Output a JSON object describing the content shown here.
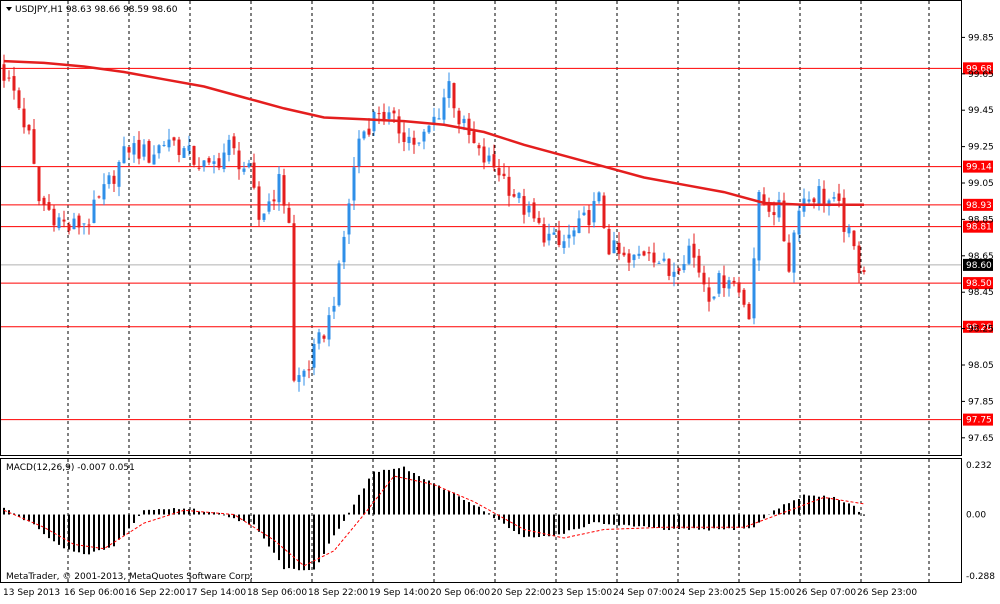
{
  "chart_data": [
    {
      "panel": "price",
      "type": "candlestick",
      "title": "USDJPY,H1  98.63 98.66 98.59 98.60",
      "ylim": [
        97.55,
        100.05
      ],
      "yticks": [
        "99.85",
        "99.65",
        "99.45",
        "99.25",
        "99.05",
        "98.85",
        "98.65",
        "98.45",
        "98.25",
        "98.05",
        "97.85",
        "97.65"
      ],
      "current_price": "98.60",
      "horizontal_levels": [
        "99.68",
        "99.14",
        "98.93",
        "98.81",
        "98.50",
        "98.26",
        "97.75"
      ],
      "moving_average": {
        "color": "#e41e1e",
        "points": [
          [
            0,
            99.72
          ],
          [
            8,
            99.71
          ],
          [
            16,
            99.69
          ],
          [
            24,
            99.66
          ],
          [
            32,
            99.62
          ],
          [
            40,
            99.58
          ],
          [
            48,
            99.52
          ],
          [
            56,
            99.46
          ],
          [
            64,
            99.41
          ],
          [
            72,
            99.4
          ],
          [
            80,
            99.39
          ],
          [
            88,
            99.37
          ],
          [
            96,
            99.33
          ],
          [
            104,
            99.26
          ],
          [
            112,
            99.2
          ],
          [
            120,
            99.14
          ],
          [
            128,
            99.08
          ],
          [
            136,
            99.04
          ],
          [
            144,
            99.0
          ],
          [
            152,
            98.94
          ],
          [
            160,
            98.93
          ],
          [
            168,
            98.93
          ],
          [
            172,
            98.93
          ]
        ]
      },
      "price_path": [
        [
          0,
          99.7
        ],
        [
          3,
          99.55
        ],
        [
          6,
          99.3
        ],
        [
          8,
          98.95
        ],
        [
          10,
          98.9
        ],
        [
          14,
          98.8
        ],
        [
          18,
          98.85
        ],
        [
          22,
          99.05
        ],
        [
          26,
          99.25
        ],
        [
          30,
          99.2
        ],
        [
          34,
          99.3
        ],
        [
          38,
          99.2
        ],
        [
          42,
          99.12
        ],
        [
          46,
          99.25
        ],
        [
          50,
          99.1
        ],
        [
          52,
          98.85
        ],
        [
          54,
          98.95
        ],
        [
          56,
          99.05
        ],
        [
          58,
          98.85
        ],
        [
          59,
          97.95
        ],
        [
          62,
          98.05
        ],
        [
          66,
          98.3
        ],
        [
          68,
          98.55
        ],
        [
          70,
          98.95
        ],
        [
          72,
          99.3
        ],
        [
          76,
          99.45
        ],
        [
          80,
          99.35
        ],
        [
          84,
          99.25
        ],
        [
          88,
          99.45
        ],
        [
          90,
          99.6
        ],
        [
          92,
          99.4
        ],
        [
          96,
          99.2
        ],
        [
          100,
          99.12
        ],
        [
          104,
          98.95
        ],
        [
          108,
          98.8
        ],
        [
          112,
          98.7
        ],
        [
          116,
          98.8
        ],
        [
          120,
          98.95
        ],
        [
          122,
          98.7
        ],
        [
          126,
          98.6
        ],
        [
          130,
          98.7
        ],
        [
          134,
          98.55
        ],
        [
          138,
          98.7
        ],
        [
          142,
          98.45
        ],
        [
          146,
          98.55
        ],
        [
          150,
          98.35
        ],
        [
          152,
          98.95
        ],
        [
          156,
          98.9
        ],
        [
          158,
          98.6
        ],
        [
          160,
          98.95
        ],
        [
          164,
          99.0
        ],
        [
          168,
          98.9
        ],
        [
          170,
          98.75
        ],
        [
          172,
          98.6
        ]
      ],
      "candle_count": 173,
      "colors": {
        "up": "#2f8fe8",
        "down": "#e41e1e",
        "level": "#ff0000",
        "level_label_bg": "#ff0000",
        "level_label_text": "#ffffff",
        "current_label_bg": "#000000"
      }
    },
    {
      "panel": "indicator",
      "type": "bar",
      "title": "MACD(12,26,9) -0.007 0.051",
      "ylim": [
        -0.288,
        0.232
      ],
      "yticks": [
        "0.232",
        "0.00",
        "-0.288"
      ],
      "histogram_path": [
        [
          0,
          0.03
        ],
        [
          6,
          -0.05
        ],
        [
          12,
          -0.16
        ],
        [
          16,
          -0.19
        ],
        [
          22,
          -0.15
        ],
        [
          28,
          0.02
        ],
        [
          36,
          0.03
        ],
        [
          44,
          0.0
        ],
        [
          50,
          -0.05
        ],
        [
          56,
          -0.25
        ],
        [
          62,
          -0.26
        ],
        [
          66,
          -0.1
        ],
        [
          70,
          0.05
        ],
        [
          74,
          0.2
        ],
        [
          80,
          0.22
        ],
        [
          86,
          0.14
        ],
        [
          90,
          0.1
        ],
        [
          96,
          0.02
        ],
        [
          104,
          -0.11
        ],
        [
          110,
          -0.1
        ],
        [
          118,
          -0.04
        ],
        [
          124,
          -0.05
        ],
        [
          132,
          -0.07
        ],
        [
          144,
          -0.07
        ],
        [
          150,
          -0.06
        ],
        [
          154,
          0.02
        ],
        [
          160,
          0.09
        ],
        [
          166,
          0.08
        ],
        [
          170,
          0.04
        ],
        [
          172,
          -0.01
        ]
      ],
      "signal_path": [
        [
          0,
          0.02
        ],
        [
          8,
          -0.06
        ],
        [
          14,
          -0.14
        ],
        [
          20,
          -0.16
        ],
        [
          28,
          -0.04
        ],
        [
          36,
          0.02
        ],
        [
          46,
          0.0
        ],
        [
          54,
          -0.12
        ],
        [
          60,
          -0.24
        ],
        [
          66,
          -0.17
        ],
        [
          72,
          0.0
        ],
        [
          78,
          0.18
        ],
        [
          86,
          0.14
        ],
        [
          94,
          0.06
        ],
        [
          104,
          -0.07
        ],
        [
          112,
          -0.11
        ],
        [
          120,
          -0.07
        ],
        [
          132,
          -0.06
        ],
        [
          148,
          -0.06
        ],
        [
          156,
          0.01
        ],
        [
          164,
          0.08
        ],
        [
          172,
          0.05
        ]
      ],
      "colors": {
        "bar": "#000000",
        "signal": "#ff0000"
      }
    }
  ],
  "x_axis": {
    "labels": [
      "13 Sep 2013",
      "16 Sep 06:00",
      "16 Sep 22:00",
      "17 Sep 14:00",
      "18 Sep 06:00",
      "18 Sep 22:00",
      "19 Sep 14:00",
      "20 Sep 06:00",
      "20 Sep 22:00",
      "23 Sep 15:00",
      "24 Sep 07:00",
      "24 Sep 23:00",
      "25 Sep 15:00",
      "26 Sep 07:00",
      "26 Sep 23:00"
    ]
  },
  "copyright": "MetaTrader, © 2001-2013, MetaQuotes Software Corp."
}
